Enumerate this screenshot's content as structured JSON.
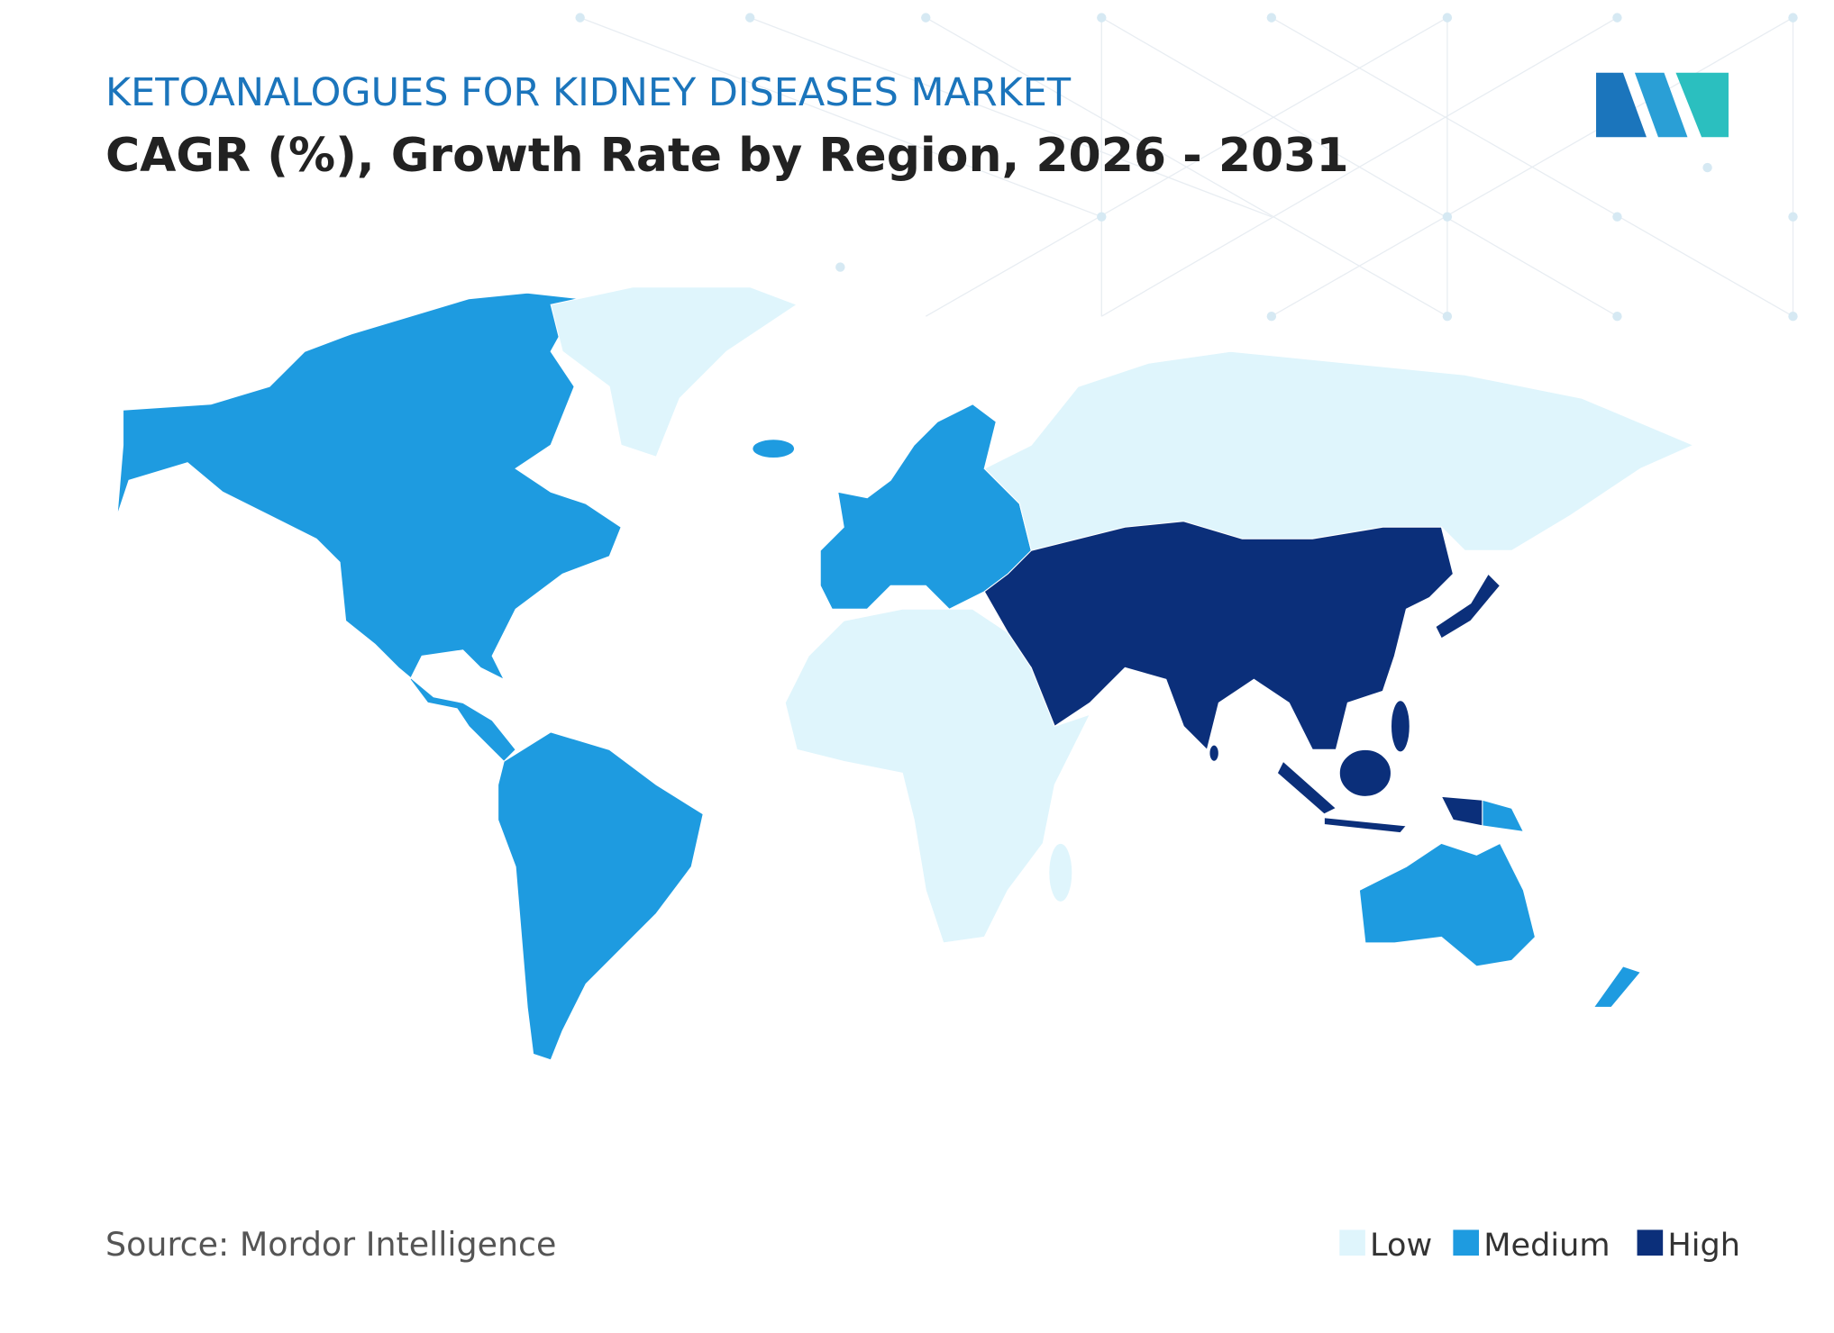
{
  "header": {
    "title": "KETOANALOGUES FOR KIDNEY DISEASES MARKET",
    "subtitle": "CAGR (%), Growth Rate by Region, 2026 - 2031"
  },
  "source": "Source: Mordor Intelligence",
  "legend": [
    {
      "label": "Low",
      "color": "#dff5fc"
    },
    {
      "label": "Medium",
      "color": "#1e9be0"
    },
    {
      "label": "High",
      "color": "#0b2f7a"
    }
  ]
}
